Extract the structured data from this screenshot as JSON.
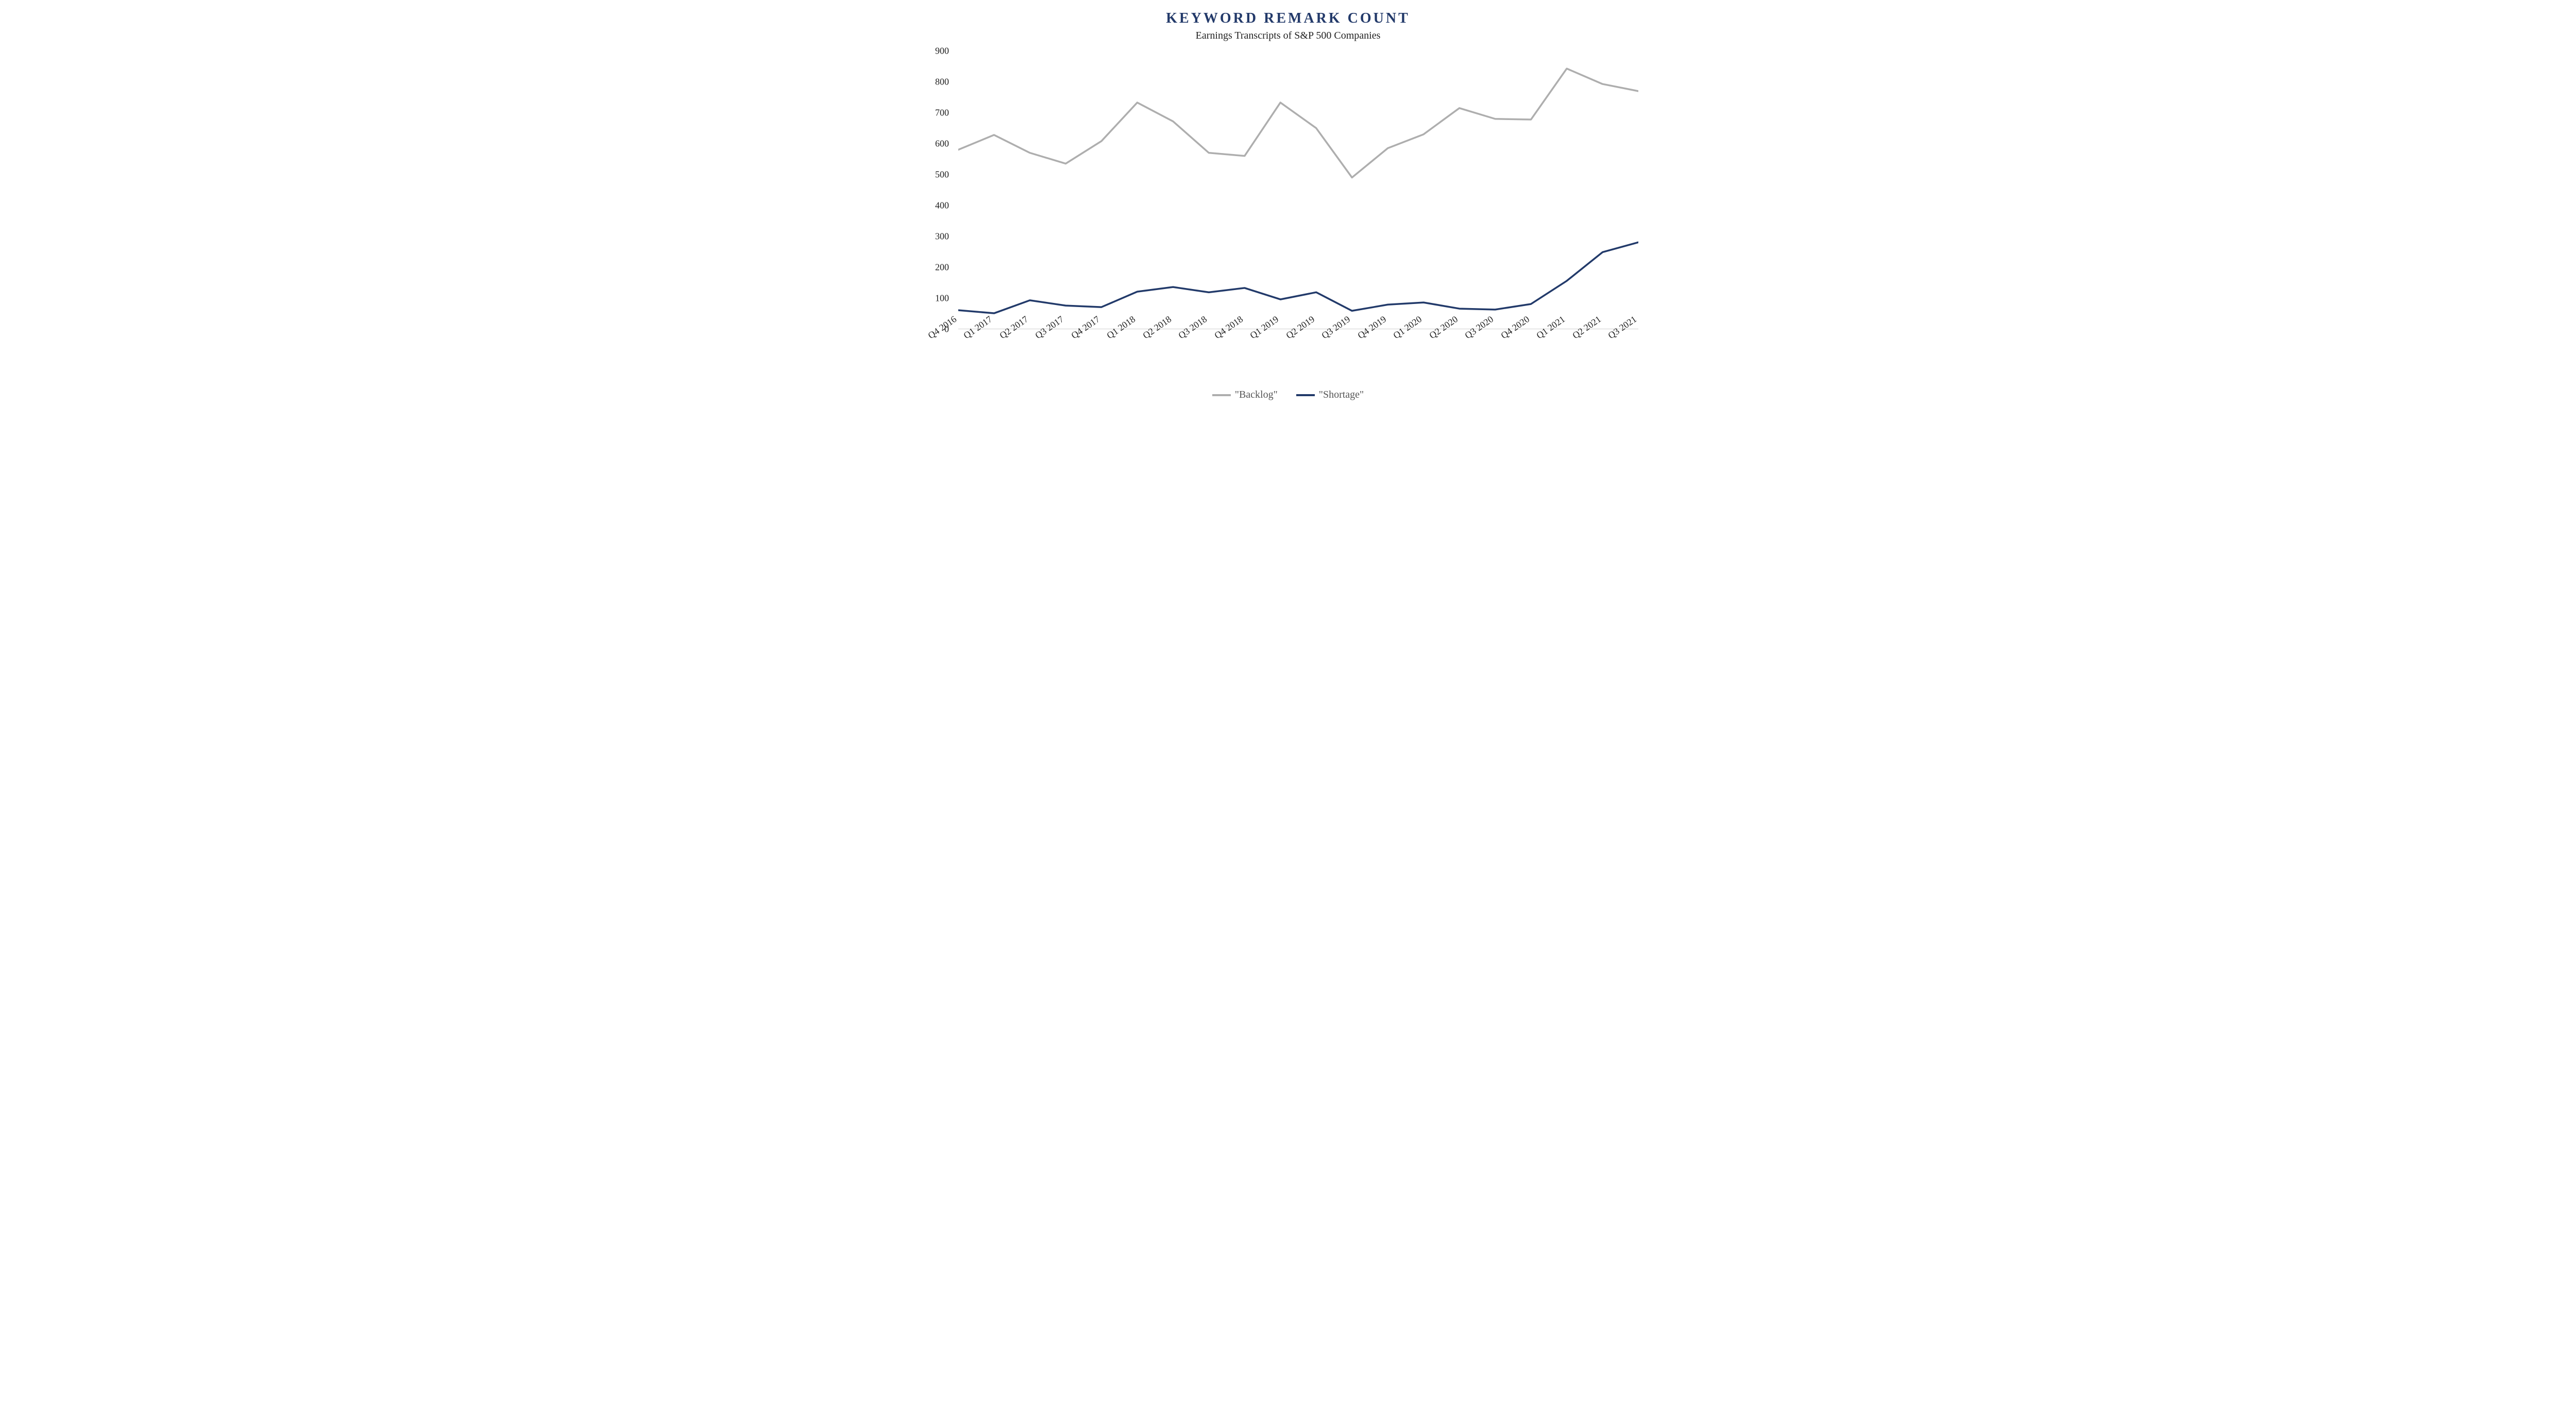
{
  "chart": {
    "type": "line",
    "title": "KEYWORD REMARK COUNT",
    "subtitle": "Earnings Transcripts of S&P 500 Companies",
    "title_color": "#233a6a",
    "title_fontsize": 28,
    "title_letter_spacing": 4,
    "subtitle_color": "#222222",
    "subtitle_fontsize": 20,
    "background_color": "#ffffff",
    "font_family": "Georgia, 'Times New Roman', serif",
    "ylim": [
      0,
      900
    ],
    "ytick_step": 100,
    "yticks": [
      0,
      100,
      200,
      300,
      400,
      500,
      600,
      700,
      800,
      900
    ],
    "ytick_fontsize": 18,
    "ytick_color": "#222222",
    "axis_line_color": "#d0d0d0",
    "grid": false,
    "line_width": 3.5,
    "categories": [
      "Q4 2016",
      "Q1 2017",
      "Q2 2017",
      "Q3 2017",
      "Q4 2017",
      "Q1 2018",
      "Q2 2018",
      "Q3 2018",
      "Q4 2018",
      "Q1 2019",
      "Q2 2019",
      "Q3 2019",
      "Q4 2019",
      "Q1 2020",
      "Q2 2020",
      "Q3 2020",
      "Q4 2020",
      "Q1 2021",
      "Q2 2021",
      "Q3 2021"
    ],
    "xtick_fontsize": 18,
    "xtick_color": "#222222",
    "xtick_rotation_deg": -35,
    "series": [
      {
        "name": "\"Backlog\"",
        "color": "#aeaeae",
        "values": [
          580,
          628,
          570,
          535,
          608,
          733,
          672,
          570,
          560,
          733,
          650,
          490,
          585,
          630,
          715,
          680,
          678,
          843,
          793,
          770
        ]
      },
      {
        "name": "\"Shortage\"",
        "color": "#223a6a",
        "values": [
          60,
          50,
          92,
          75,
          70,
          120,
          135,
          118,
          132,
          95,
          118,
          58,
          78,
          85,
          65,
          62,
          80,
          155,
          248,
          280
        ]
      }
    ],
    "legend": {
      "position": "bottom",
      "fontsize": 20,
      "text_color": "#555555",
      "swatch_line_width": 4
    }
  }
}
